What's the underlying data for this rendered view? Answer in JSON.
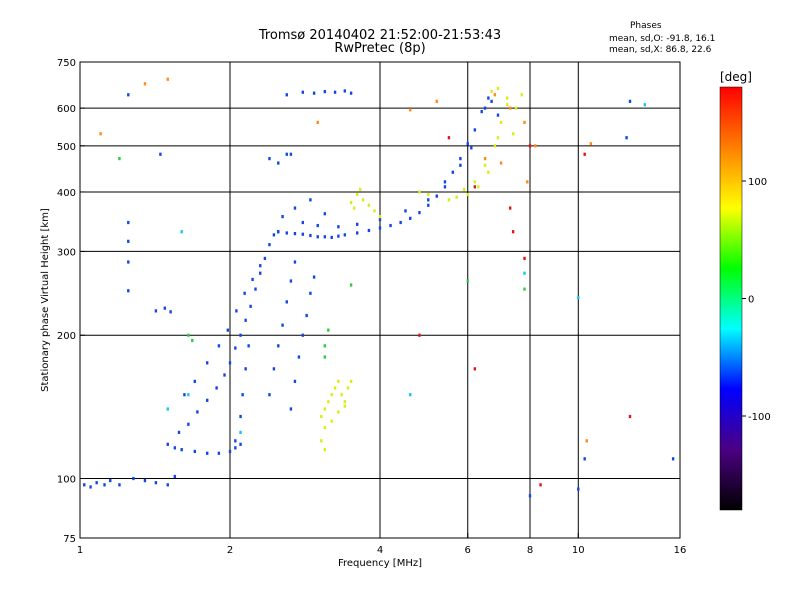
{
  "header": {
    "title": "Tromsø 20140402 21:52:00-21:53:43",
    "subtitle": "RwPretec (8p)",
    "stats_heading": "Phases",
    "stats_o": "mean, sd,O: -91.8, 16.1",
    "stats_x": "mean, sd,X:  86.8, 22.6"
  },
  "chart_data": {
    "type": "scatter",
    "xlabel": "Frequency [MHz]",
    "ylabel": "Stationary phase Virtual Height [km]",
    "xscale": "log",
    "yscale": "log",
    "xlim": [
      1,
      16
    ],
    "ylim": [
      75,
      750
    ],
    "xticks": [
      1,
      2,
      4,
      6,
      8,
      10,
      16
    ],
    "yticks": [
      75,
      100,
      200,
      300,
      400,
      500,
      600,
      750
    ],
    "grid_x": [
      2,
      4,
      6,
      8,
      10
    ],
    "grid_y": [
      100,
      200,
      300,
      400,
      500,
      600
    ],
    "colorbar": {
      "label": "[deg]",
      "range": [
        -180,
        180
      ],
      "ticks": [
        -100,
        0,
        100
      ],
      "colors": [
        "#000000",
        "#4b0082",
        "#0000ff",
        "#00ffff",
        "#00ff00",
        "#ffff00",
        "#ff7f00",
        "#ff0000"
      ]
    },
    "series": [
      {
        "phase": -100,
        "color": "#1446e6",
        "points": [
          [
            1.02,
            97
          ],
          [
            1.05,
            96
          ],
          [
            1.08,
            98
          ],
          [
            1.12,
            97
          ],
          [
            1.15,
            99
          ],
          [
            1.2,
            97
          ],
          [
            1.28,
            100
          ],
          [
            1.35,
            99
          ],
          [
            1.42,
            98
          ],
          [
            1.5,
            97
          ],
          [
            1.55,
            101
          ],
          [
            1.5,
            118
          ],
          [
            1.55,
            116
          ],
          [
            1.6,
            115
          ],
          [
            1.7,
            114
          ],
          [
            1.8,
            113
          ],
          [
            1.9,
            113
          ],
          [
            2.0,
            114
          ],
          [
            2.05,
            116
          ],
          [
            2.1,
            118
          ],
          [
            1.58,
            125
          ],
          [
            1.65,
            130
          ],
          [
            1.72,
            138
          ],
          [
            1.8,
            146
          ],
          [
            1.88,
            155
          ],
          [
            1.95,
            165
          ],
          [
            2.0,
            175
          ],
          [
            2.05,
            188
          ],
          [
            2.1,
            200
          ],
          [
            2.15,
            215
          ],
          [
            2.2,
            230
          ],
          [
            2.25,
            250
          ],
          [
            2.3,
            270
          ],
          [
            2.35,
            290
          ],
          [
            2.4,
            310
          ],
          [
            2.45,
            325
          ],
          [
            2.5,
            330
          ],
          [
            1.62,
            150
          ],
          [
            1.7,
            160
          ],
          [
            1.8,
            175
          ],
          [
            1.9,
            190
          ],
          [
            1.98,
            205
          ],
          [
            2.06,
            225
          ],
          [
            2.14,
            245
          ],
          [
            2.22,
            262
          ],
          [
            2.3,
            280
          ],
          [
            2.4,
            150
          ],
          [
            2.45,
            170
          ],
          [
            2.5,
            190
          ],
          [
            2.55,
            210
          ],
          [
            2.6,
            235
          ],
          [
            2.65,
            260
          ],
          [
            2.7,
            285
          ],
          [
            2.65,
            140
          ],
          [
            2.7,
            160
          ],
          [
            2.75,
            180
          ],
          [
            2.8,
            200
          ],
          [
            2.85,
            220
          ],
          [
            2.9,
            245
          ],
          [
            2.95,
            265
          ],
          [
            2.05,
            120
          ],
          [
            2.1,
            135
          ],
          [
            2.12,
            150
          ],
          [
            2.15,
            170
          ],
          [
            2.18,
            190
          ],
          [
            2.5,
            330
          ],
          [
            2.6,
            328
          ],
          [
            2.7,
            327
          ],
          [
            2.8,
            326
          ],
          [
            2.9,
            324
          ],
          [
            3.0,
            322
          ],
          [
            3.1,
            322
          ],
          [
            3.2,
            321
          ],
          [
            3.3,
            323
          ],
          [
            3.4,
            325
          ],
          [
            3.6,
            328
          ],
          [
            3.8,
            332
          ],
          [
            4.0,
            336
          ],
          [
            4.2,
            340
          ],
          [
            4.4,
            345
          ],
          [
            4.6,
            352
          ],
          [
            4.8,
            362
          ],
          [
            5.0,
            375
          ],
          [
            5.2,
            392
          ],
          [
            5.4,
            410
          ],
          [
            5.6,
            440
          ],
          [
            5.8,
            470
          ],
          [
            6.0,
            505
          ],
          [
            6.2,
            540
          ],
          [
            6.4,
            590
          ],
          [
            6.6,
            630
          ],
          [
            2.8,
            345
          ],
          [
            3.0,
            340
          ],
          [
            3.3,
            338
          ],
          [
            3.6,
            342
          ],
          [
            4.0,
            350
          ],
          [
            4.5,
            365
          ],
          [
            5.0,
            385
          ],
          [
            5.4,
            420
          ],
          [
            5.8,
            455
          ],
          [
            6.1,
            495
          ],
          [
            2.55,
            355
          ],
          [
            2.7,
            370
          ],
          [
            2.9,
            385
          ],
          [
            3.1,
            360
          ],
          [
            2.6,
            640
          ],
          [
            2.8,
            648
          ],
          [
            2.95,
            645
          ],
          [
            3.1,
            650
          ],
          [
            3.25,
            648
          ],
          [
            3.4,
            652
          ],
          [
            3.5,
            645
          ],
          [
            2.6,
            480
          ],
          [
            2.5,
            460
          ],
          [
            2.4,
            470
          ],
          [
            6.5,
            600
          ],
          [
            6.7,
            620
          ],
          [
            6.9,
            580
          ],
          [
            1.42,
            225
          ],
          [
            1.48,
            228
          ],
          [
            1.52,
            224
          ],
          [
            1.25,
            345
          ],
          [
            1.25,
            315
          ],
          [
            1.25,
            285
          ],
          [
            1.25,
            248
          ],
          [
            1.25,
            640
          ],
          [
            1.45,
            480
          ],
          [
            2.65,
            480
          ],
          [
            8.0,
            92
          ],
          [
            10.0,
            95
          ],
          [
            10.3,
            110
          ],
          [
            12.7,
            620
          ],
          [
            12.5,
            520
          ],
          [
            15.5,
            110
          ]
        ]
      },
      {
        "phase": 100,
        "color": "#dcec14",
        "points": [
          [
            3.05,
            135
          ],
          [
            3.1,
            140
          ],
          [
            3.15,
            145
          ],
          [
            3.2,
            150
          ],
          [
            3.25,
            155
          ],
          [
            3.3,
            160
          ],
          [
            3.35,
            150
          ],
          [
            3.4,
            145
          ],
          [
            3.45,
            155
          ],
          [
            3.5,
            160
          ],
          [
            3.1,
            128
          ],
          [
            3.2,
            132
          ],
          [
            3.3,
            138
          ],
          [
            3.4,
            142
          ],
          [
            3.5,
            380
          ],
          [
            3.6,
            395
          ],
          [
            3.7,
            385
          ],
          [
            3.8,
            375
          ],
          [
            3.9,
            365
          ],
          [
            4.0,
            355
          ],
          [
            3.65,
            405
          ],
          [
            3.55,
            370
          ],
          [
            5.5,
            385
          ],
          [
            5.7,
            390
          ],
          [
            6.0,
            395
          ],
          [
            6.3,
            410
          ],
          [
            6.6,
            440
          ],
          [
            6.9,
            520
          ],
          [
            7.2,
            610
          ],
          [
            5.9,
            405
          ],
          [
            6.2,
            420
          ],
          [
            6.5,
            455
          ],
          [
            6.8,
            500
          ],
          [
            7.0,
            560
          ],
          [
            7.5,
            600
          ],
          [
            7.7,
            640
          ],
          [
            6.7,
            650
          ],
          [
            6.9,
            660
          ],
          [
            7.2,
            630
          ],
          [
            7.4,
            530
          ],
          [
            3.1,
            115
          ],
          [
            3.05,
            120
          ],
          [
            4.8,
            400
          ],
          [
            5.0,
            395
          ]
        ]
      },
      {
        "phase": 150,
        "color": "#ff8c1a",
        "points": [
          [
            1.35,
            675
          ],
          [
            1.5,
            690
          ],
          [
            6.8,
            640
          ],
          [
            7.3,
            600
          ],
          [
            7.8,
            560
          ],
          [
            7.0,
            460
          ],
          [
            6.5,
            470
          ],
          [
            10.4,
            120
          ],
          [
            8.2,
            500
          ],
          [
            7.9,
            420
          ],
          [
            10.6,
            505
          ],
          [
            1.1,
            530
          ],
          [
            3.0,
            560
          ],
          [
            4.6,
            595
          ],
          [
            5.2,
            620
          ]
        ]
      },
      {
        "phase": 30,
        "color": "#2ecc40",
        "points": [
          [
            3.1,
            190
          ],
          [
            3.15,
            205
          ],
          [
            3.1,
            180
          ],
          [
            1.65,
            200
          ],
          [
            1.68,
            195
          ],
          [
            1.2,
            470
          ],
          [
            3.5,
            255
          ],
          [
            6.0,
            260
          ],
          [
            7.8,
            250
          ]
        ]
      },
      {
        "phase": -40,
        "color": "#16c8e6",
        "points": [
          [
            1.5,
            140
          ],
          [
            1.65,
            150
          ],
          [
            2.1,
            125
          ],
          [
            7.8,
            270
          ],
          [
            4.6,
            150
          ],
          [
            13.6,
            610
          ],
          [
            10.0,
            240
          ],
          [
            1.6,
            330
          ]
        ]
      },
      {
        "phase": 175,
        "color": "#e01414",
        "points": [
          [
            7.3,
            370
          ],
          [
            6.2,
            410
          ],
          [
            7.4,
            330
          ],
          [
            4.8,
            200
          ],
          [
            6.2,
            170
          ],
          [
            7.8,
            290
          ],
          [
            8.0,
            500
          ],
          [
            10.3,
            480
          ],
          [
            12.7,
            135
          ],
          [
            5.5,
            520
          ],
          [
            8.4,
            97
          ]
        ]
      }
    ]
  }
}
